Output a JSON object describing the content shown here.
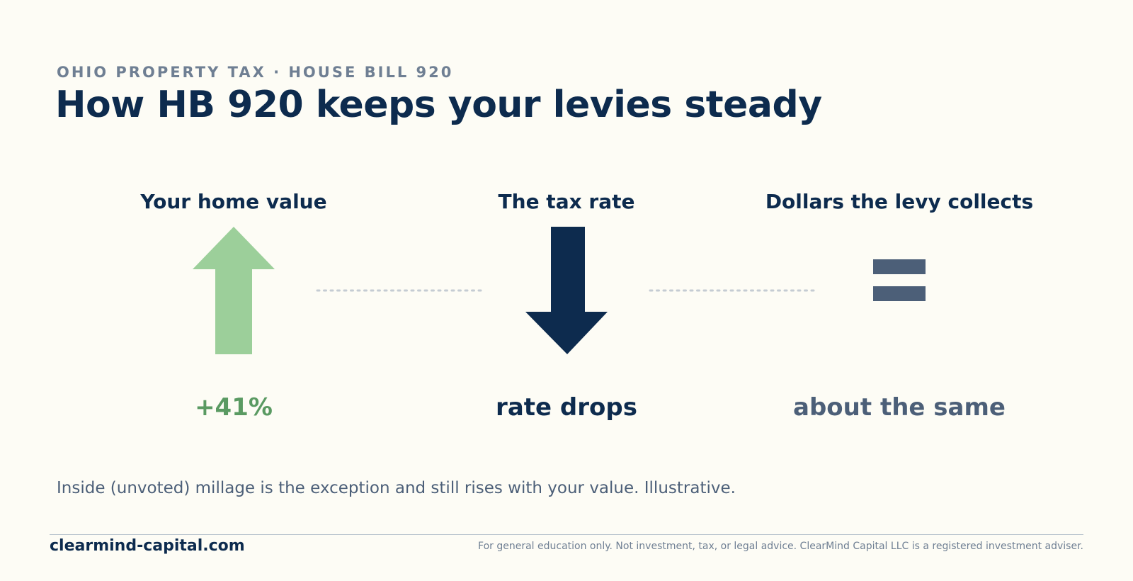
{
  "header": {
    "eyebrow": "OHIO PROPERTY TAX · HOUSE BILL 920",
    "title": "How HB 920 keeps your levies steady"
  },
  "columns": [
    {
      "heading": "Your home value",
      "value": "+41%",
      "icon": "arrow-up-icon",
      "color": "#9ccf9a"
    },
    {
      "heading": "The tax rate",
      "value": "rate drops",
      "icon": "arrow-down-icon",
      "color": "#0d2b4e"
    },
    {
      "heading": "Dollars the levy collects",
      "value": "about the same",
      "icon": "equals-icon",
      "color": "#4c5f78"
    }
  ],
  "note": "Inside (unvoted) millage is the exception and still rises with your value. Illustrative.",
  "footer": {
    "site": "clearmind-capital.com",
    "disclaimer": "For general education only. Not investment, tax, or legal advice. ClearMind Capital LLC is a registered investment adviser."
  },
  "colors": {
    "background": "#fdfcf5",
    "navy": "#0d2b4e",
    "green_arrow": "#9ccf9a",
    "green_text": "#5a9a62",
    "slate": "#4c5f78",
    "connector": "#c5ccd3"
  }
}
